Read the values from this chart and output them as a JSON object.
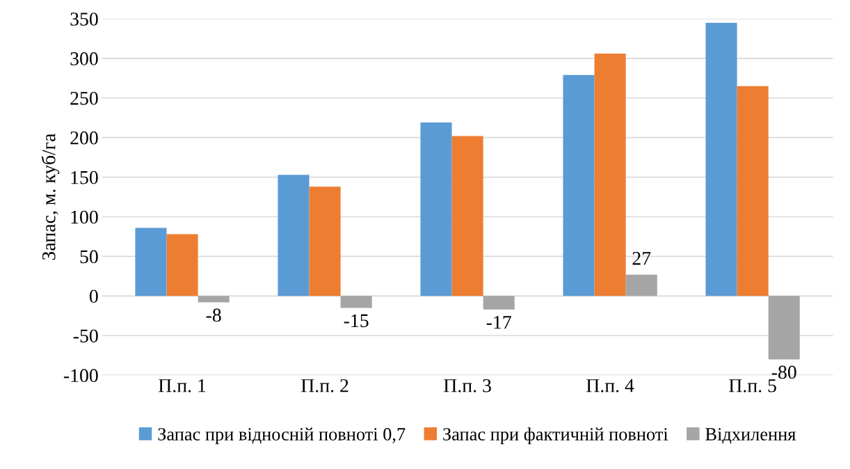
{
  "chart_data": {
    "type": "bar",
    "ylabel": "Запас, м. куб/га",
    "categories": [
      "П.п. 1",
      "П.п. 2",
      "П.п. 3",
      "П.п. 4",
      "П.п. 5"
    ],
    "series": [
      {
        "name": "Запас при відносній повноті 0,7",
        "color": "#5b9bd5",
        "values": [
          86,
          153,
          219,
          279,
          345
        ]
      },
      {
        "name": "Запас при фактичній повноті",
        "color": "#ed7d31",
        "values": [
          78,
          138,
          202,
          306,
          265
        ]
      },
      {
        "name": "Відхилення",
        "color": "#a5a5a5",
        "values": [
          -8,
          -15,
          -17,
          27,
          -80
        ],
        "value_labels": [
          "-8",
          "-15",
          "-17",
          "27",
          "-80"
        ]
      }
    ],
    "ylim": [
      -100,
      350
    ],
    "yticks": [
      -100,
      -50,
      0,
      50,
      100,
      150,
      200,
      250,
      300,
      350
    ],
    "grid": "y",
    "legend": "bottom"
  }
}
